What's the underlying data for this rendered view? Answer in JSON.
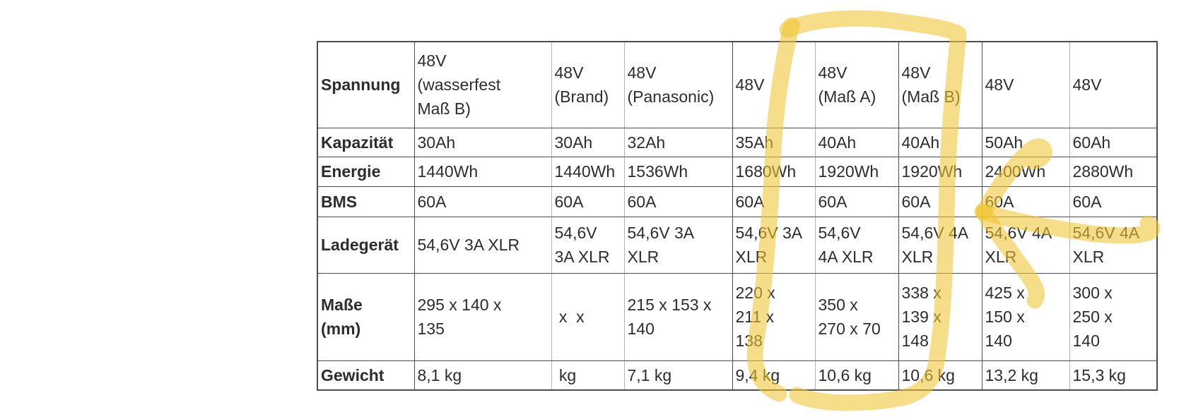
{
  "annotation": {
    "highlight_color": "#F0C433",
    "marks": [
      "hand-drawn-loop-around-mass-a-and-mass-b-columns",
      "three-pronged-arrow-pointing-at-loop"
    ]
  },
  "chart_data": {
    "type": "table",
    "rows": [
      {
        "label": "Spannung",
        "cells": [
          "48V\n(wasserfest\nMaß B)",
          "48V\n(Brand)",
          "48V\n(Panasonic)",
          "48V",
          "48V\n(Maß A)",
          "48V\n(Maß B)",
          "48V",
          "48V"
        ]
      },
      {
        "label": "Kapazität",
        "cells": [
          "30Ah",
          "30Ah",
          "32Ah",
          "35Ah",
          "40Ah",
          "40Ah",
          "50Ah",
          "60Ah"
        ]
      },
      {
        "label": "Energie",
        "cells": [
          "1440Wh",
          "1440Wh",
          "1536Wh",
          "1680Wh",
          "1920Wh",
          "1920Wh",
          "2400Wh",
          "2880Wh"
        ]
      },
      {
        "label": "BMS",
        "cells": [
          "60A",
          "60A",
          "60A",
          "60A",
          "60A",
          "60A",
          "60A",
          "60A"
        ]
      },
      {
        "label": "Ladegerät",
        "cells": [
          "54,6V 3A XLR",
          "54,6V\n3A XLR",
          "54,6V 3A\nXLR",
          "54,6V 3A\nXLR",
          "54,6V\n4A XLR",
          "54,6V 4A\nXLR",
          "54,6V 4A\nXLR",
          "54,6V 4A\nXLR"
        ]
      },
      {
        "label": "Maße\n(mm)",
        "cells": [
          "295 x 140 x\n135",
          " x  x",
          "215 x 153 x\n140",
          "220 x\n211 x\n138",
          "350 x\n270 x 70",
          "338 x\n139 x\n148",
          "425 x\n150 x\n140",
          "300 x\n250 x\n140"
        ]
      },
      {
        "label": "Gewicht",
        "cells": [
          "8,1 kg",
          " kg",
          "7,1 kg",
          "9,4 kg",
          "10,6 kg",
          "10,6 kg",
          "13,2 kg",
          "15,3 kg"
        ]
      }
    ]
  }
}
